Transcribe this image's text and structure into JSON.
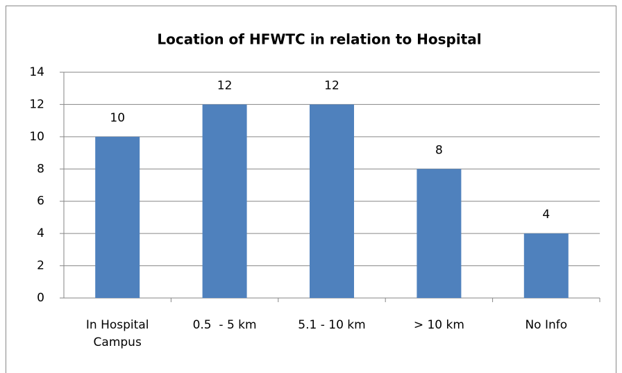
{
  "chart_data": {
    "type": "bar",
    "title": "Location of HFWTC in relation to Hospital",
    "categories": [
      "In Hospital Campus",
      "0.5  - 5 km",
      "5.1 - 10 km",
      "> 10 km",
      "No Info"
    ],
    "values": [
      10,
      12,
      12,
      8,
      4
    ],
    "color": "#4f81bd",
    "ylim": [
      0,
      14
    ],
    "yticks": [
      0,
      2,
      4,
      6,
      8,
      10,
      12,
      14
    ],
    "grid": true,
    "data_labels": true
  }
}
